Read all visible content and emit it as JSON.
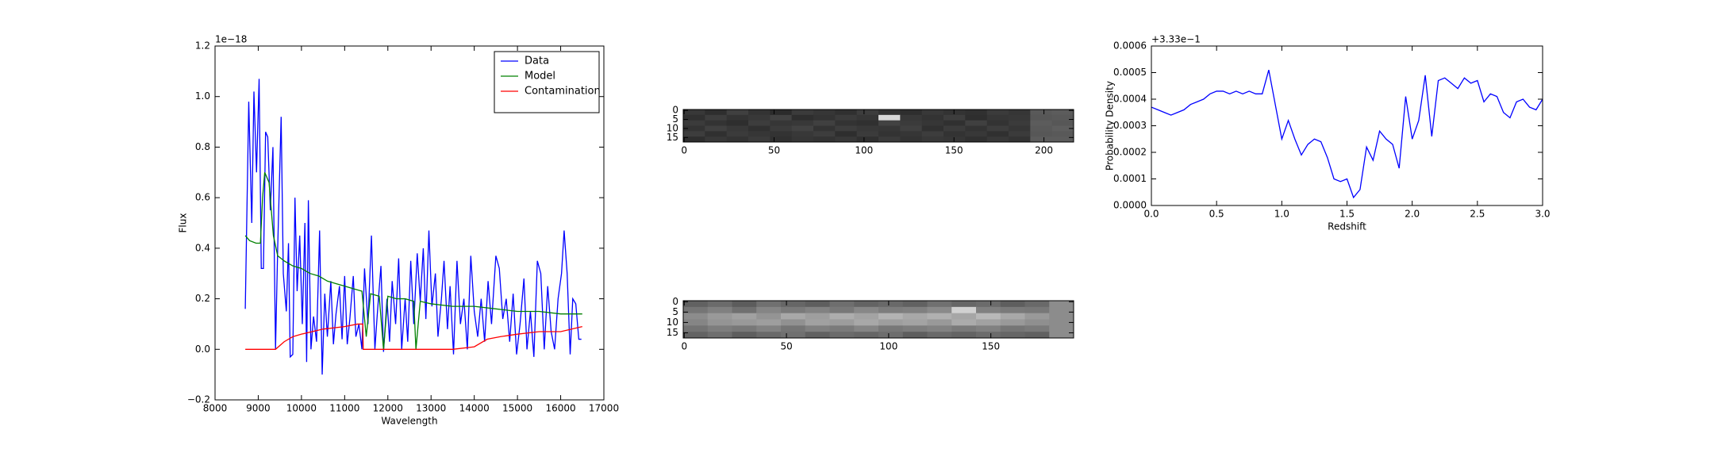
{
  "chart_data": [
    {
      "type": "line",
      "xlabel": "Wavelength",
      "ylabel": "Flux",
      "offset_label": "1e−18",
      "legend": "upper right",
      "xlim": [
        8000,
        17000
      ],
      "xticks": [
        8000,
        9000,
        10000,
        11000,
        12000,
        13000,
        14000,
        15000,
        16000,
        17000
      ],
      "ylim": [
        -0.2,
        1.2
      ],
      "yticks": [
        {
          "value": -0.2,
          "label": "−0.2"
        },
        {
          "value": 0,
          "label": "0.0"
        },
        0.2,
        0.4,
        0.6,
        0.8,
        {
          "value": 1,
          "label": "1.0"
        },
        {
          "value": 1.2,
          "label": "1.2"
        }
      ],
      "series": [
        {
          "name": "Data",
          "color": "#0000ff",
          "x": [
            8700,
            8780,
            8850,
            8900,
            8960,
            9020,
            9070,
            9120,
            9170,
            9220,
            9280,
            9340,
            9400,
            9450,
            9530,
            9580,
            9650,
            9700,
            9740,
            9800,
            9850,
            9900,
            9960,
            10020,
            10080,
            10120,
            10160,
            10220,
            10280,
            10350,
            10420,
            10480,
            10540,
            10600,
            10680,
            10740,
            10800,
            10880,
            10940,
            11000,
            11060,
            11120,
            11200,
            11260,
            11330,
            11400,
            11460,
            11540,
            11620,
            11700,
            11760,
            11840,
            11900,
            11980,
            12040,
            12100,
            12180,
            12250,
            12320,
            12400,
            12460,
            12530,
            12600,
            12680,
            12750,
            12820,
            12880,
            12950,
            13020,
            13100,
            13160,
            13240,
            13300,
            13380,
            13440,
            13520,
            13600,
            13680,
            13760,
            13840,
            13920,
            14000,
            14080,
            14160,
            14240,
            14320,
            14400,
            14500,
            14580,
            14660,
            14740,
            14820,
            14900,
            14980,
            15060,
            15150,
            15220,
            15300,
            15380,
            15460,
            15540,
            15620,
            15700,
            15780,
            15860,
            15940,
            16020,
            16080,
            16150,
            16220,
            16280,
            16350,
            16420,
            16480
          ],
          "values": [
            0.16,
            0.98,
            0.5,
            1.02,
            0.7,
            1.07,
            0.32,
            0.32,
            0.86,
            0.84,
            0.55,
            0.8,
            0.0,
            0.4,
            0.92,
            0.3,
            0.15,
            0.42,
            -0.03,
            -0.02,
            0.6,
            0.23,
            0.45,
            0.1,
            0.5,
            -0.05,
            0.59,
            0.0,
            0.13,
            0.03,
            0.47,
            -0.1,
            0.22,
            0.05,
            0.27,
            0.02,
            0.14,
            0.25,
            0.04,
            0.29,
            0.02,
            0.12,
            0.29,
            0.05,
            0.1,
            0.0,
            0.32,
            0.1,
            0.45,
            0.0,
            0.15,
            0.33,
            -0.01,
            0.2,
            0.03,
            0.27,
            0.1,
            0.36,
            0.0,
            0.2,
            0.03,
            0.35,
            0.1,
            0.38,
            0.19,
            0.4,
            0.12,
            0.47,
            0.17,
            0.3,
            0.05,
            0.2,
            0.35,
            0.08,
            0.25,
            -0.02,
            0.35,
            0.1,
            0.2,
            0.0,
            0.37,
            0.15,
            0.05,
            0.2,
            0.03,
            0.27,
            0.1,
            0.37,
            0.32,
            0.12,
            0.2,
            0.03,
            0.22,
            -0.02,
            0.1,
            0.28,
            0.0,
            0.15,
            -0.03,
            0.35,
            0.3,
            0.0,
            0.25,
            0.07,
            0.0,
            0.2,
            0.3,
            0.47,
            0.3,
            -0.02,
            0.2,
            0.18,
            0.04,
            0.04
          ]
        },
        {
          "name": "Model",
          "color": "#008000",
          "x": [
            8700,
            8800,
            8950,
            9050,
            9100,
            9150,
            9250,
            9350,
            9450,
            9600,
            9800,
            10000,
            10200,
            10400,
            10600,
            10800,
            11000,
            11200,
            11400,
            11500,
            11600,
            11800,
            11900,
            12000,
            12200,
            12400,
            12600,
            12650,
            12750,
            13000,
            13500,
            14000,
            14500,
            15000,
            15500,
            16000,
            16500
          ],
          "values": [
            0.45,
            0.43,
            0.42,
            0.42,
            0.6,
            0.7,
            0.66,
            0.45,
            0.37,
            0.35,
            0.33,
            0.32,
            0.3,
            0.29,
            0.27,
            0.26,
            0.25,
            0.24,
            0.23,
            0.05,
            0.22,
            0.21,
            0.0,
            0.21,
            0.2,
            0.2,
            0.19,
            0.0,
            0.19,
            0.18,
            0.17,
            0.17,
            0.16,
            0.15,
            0.15,
            0.14,
            0.14
          ]
        },
        {
          "name": "Contamination",
          "color": "#ff0000",
          "x": [
            8700,
            9400,
            9600,
            9800,
            10000,
            10500,
            11000,
            11300,
            11420,
            11430,
            12500,
            13500,
            14000,
            14300,
            14600,
            15000,
            15500,
            16000,
            16500
          ],
          "values": [
            0,
            0,
            0.03,
            0.05,
            0.06,
            0.08,
            0.09,
            0.1,
            0.1,
            0,
            0,
            0,
            0.01,
            0.04,
            0.05,
            0.06,
            0.07,
            0.07,
            0.09
          ]
        }
      ]
    },
    {
      "type": "heatmap",
      "cmap": "gray",
      "xlim": [
        -0.5,
        216.5
      ],
      "ylim": [
        17.5,
        -0.5
      ],
      "xticks": [
        0,
        50,
        100,
        150,
        200
      ],
      "yticks": [
        0,
        5,
        10,
        15
      ],
      "z": [
        [
          0.22,
          0.18,
          0.25,
          0.2,
          0.17,
          0.23,
          0.21,
          0.19,
          0.24,
          0.2,
          0.18,
          0.22,
          0.2,
          0.19,
          0.23,
          0.21,
          0.35,
          0.36
        ],
        [
          0.19,
          0.24,
          0.2,
          0.22,
          0.26,
          0.18,
          0.2,
          0.23,
          0.21,
          0.85,
          0.22,
          0.2,
          0.24,
          0.18,
          0.21,
          0.22,
          0.34,
          0.35
        ],
        [
          0.23,
          0.2,
          0.18,
          0.24,
          0.21,
          0.22,
          0.25,
          0.2,
          0.19,
          0.26,
          0.23,
          0.21,
          0.19,
          0.25,
          0.2,
          0.23,
          0.36,
          0.34
        ],
        [
          0.2,
          0.25,
          0.22,
          0.19,
          0.23,
          0.26,
          0.2,
          0.24,
          0.22,
          0.21,
          0.25,
          0.19,
          0.23,
          0.2,
          0.24,
          0.21,
          0.35,
          0.37
        ],
        [
          0.24,
          0.19,
          0.23,
          0.21,
          0.2,
          0.22,
          0.24,
          0.18,
          0.23,
          0.2,
          0.21,
          0.24,
          0.2,
          0.22,
          0.19,
          0.23,
          0.34,
          0.35
        ],
        [
          0.18,
          0.22,
          0.2,
          0.23,
          0.19,
          0.21,
          0.2,
          0.22,
          0.19,
          0.23,
          0.2,
          0.22,
          0.21,
          0.19,
          0.22,
          0.2,
          0.36,
          0.36
        ]
      ]
    },
    {
      "type": "heatmap",
      "cmap": "gray",
      "xlim": [
        -0.5,
        190.5
      ],
      "ylim": [
        17.5,
        -0.5
      ],
      "xticks": [
        0,
        50,
        100,
        150
      ],
      "yticks": [
        0,
        5,
        10,
        15
      ],
      "z": [
        [
          0.38,
          0.42,
          0.36,
          0.44,
          0.4,
          0.37,
          0.43,
          0.39,
          0.41,
          0.38,
          0.44,
          0.4,
          0.42,
          0.37,
          0.41,
          0.55
        ],
        [
          0.46,
          0.5,
          0.44,
          0.52,
          0.48,
          0.51,
          0.47,
          0.53,
          0.49,
          0.5,
          0.54,
          0.82,
          0.5,
          0.48,
          0.47,
          0.55
        ],
        [
          0.55,
          0.6,
          0.63,
          0.58,
          0.66,
          0.62,
          0.68,
          0.64,
          0.7,
          0.66,
          0.69,
          0.65,
          0.72,
          0.66,
          0.6,
          0.55
        ],
        [
          0.52,
          0.58,
          0.6,
          0.62,
          0.57,
          0.63,
          0.61,
          0.66,
          0.62,
          0.64,
          0.6,
          0.67,
          0.63,
          0.6,
          0.56,
          0.55
        ],
        [
          0.45,
          0.49,
          0.47,
          0.51,
          0.46,
          0.5,
          0.48,
          0.52,
          0.47,
          0.49,
          0.51,
          0.48,
          0.5,
          0.46,
          0.48,
          0.55
        ],
        [
          0.39,
          0.43,
          0.37,
          0.41,
          0.44,
          0.38,
          0.42,
          0.4,
          0.43,
          0.37,
          0.41,
          0.39,
          0.42,
          0.4,
          0.38,
          0.55
        ]
      ]
    },
    {
      "type": "line",
      "xlabel": "Redshift",
      "ylabel": "Probability Density",
      "offset_label": "+3.33e−1",
      "color": "#0000ff",
      "xlim": [
        0,
        3
      ],
      "xticks": [
        {
          "value": 0,
          "label": "0.0"
        },
        0.5,
        {
          "value": 1,
          "label": "1.0"
        },
        1.5,
        {
          "value": 2,
          "label": "2.0"
        },
        2.5,
        {
          "value": 3,
          "label": "3.0"
        }
      ],
      "ylim": [
        0,
        0.0006
      ],
      "yticks": [
        {
          "value": 0,
          "label": "0.0000"
        },
        {
          "value": 0.0001,
          "label": "0.0001"
        },
        {
          "value": 0.0002,
          "label": "0.0002"
        },
        {
          "value": 0.0003,
          "label": "0.0003"
        },
        {
          "value": 0.0004,
          "label": "0.0004"
        },
        {
          "value": 0.0005,
          "label": "0.0005"
        },
        {
          "value": 0.0006,
          "label": "0.0006"
        }
      ],
      "x": [
        0,
        0.05,
        0.1,
        0.15,
        0.2,
        0.25,
        0.3,
        0.35,
        0.4,
        0.45,
        0.5,
        0.55,
        0.6,
        0.65,
        0.7,
        0.75,
        0.8,
        0.85,
        0.9,
        0.95,
        1.0,
        1.05,
        1.1,
        1.15,
        1.2,
        1.25,
        1.3,
        1.35,
        1.4,
        1.45,
        1.5,
        1.55,
        1.6,
        1.65,
        1.7,
        1.75,
        1.8,
        1.85,
        1.9,
        1.95,
        2.0,
        2.05,
        2.1,
        2.15,
        2.2,
        2.25,
        2.3,
        2.35,
        2.4,
        2.45,
        2.5,
        2.55,
        2.6,
        2.65,
        2.7,
        2.75,
        2.8,
        2.85,
        2.9,
        2.95,
        3.0
      ],
      "values": [
        0.00037,
        0.00036,
        0.00035,
        0.00034,
        0.00035,
        0.00036,
        0.00038,
        0.00039,
        0.0004,
        0.00042,
        0.00043,
        0.00043,
        0.00042,
        0.00043,
        0.00042,
        0.00043,
        0.00042,
        0.00042,
        0.00051,
        0.00038,
        0.00025,
        0.00032,
        0.00025,
        0.00019,
        0.00023,
        0.00025,
        0.00024,
        0.00018,
        0.0001,
        9e-05,
        0.0001,
        3e-05,
        6e-05,
        0.00022,
        0.00017,
        0.00028,
        0.00025,
        0.00023,
        0.00014,
        0.00041,
        0.00025,
        0.00032,
        0.00049,
        0.00026,
        0.00047,
        0.00048,
        0.00046,
        0.00044,
        0.00048,
        0.00046,
        0.00047,
        0.00039,
        0.00042,
        0.00041,
        0.00035,
        0.00033,
        0.00039,
        0.0004,
        0.00037,
        0.00036,
        0.0004
      ]
    }
  ]
}
